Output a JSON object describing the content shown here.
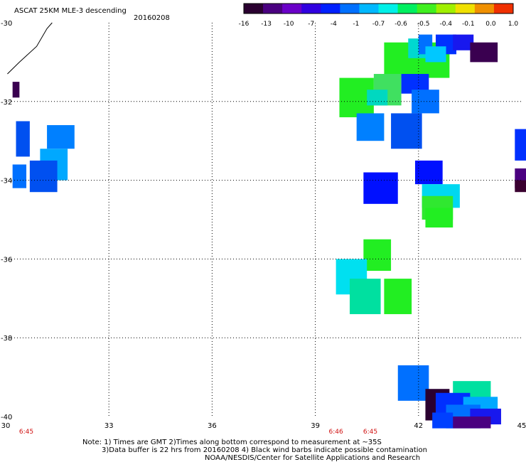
{
  "header": {
    "title": "ASCAT 25KM MLE-3 descending",
    "date": "20160208"
  },
  "colorbar": {
    "labels": [
      "-16",
      "-13",
      "-10",
      "-7",
      "-4",
      "-1",
      "-0.7",
      "-0.6",
      "-0.5",
      "-0.4",
      "-0.1",
      "0.0",
      "1.0"
    ],
    "colors": [
      "#2a0030",
      "#4a0080",
      "#6a00c8",
      "#3000e0",
      "#0020ff",
      "#0070ff",
      "#00b8ff",
      "#00f0e8",
      "#00f060",
      "#40f020",
      "#a0f000",
      "#f0e000",
      "#f09000",
      "#f03000"
    ]
  },
  "map": {
    "lon_min": 30,
    "lon_max": 45,
    "lat_min": -40,
    "lat_max": -30,
    "x_ticks": [
      "30",
      "33",
      "36",
      "39",
      "42",
      "45"
    ],
    "y_ticks": [
      "-30",
      "-32",
      "-34",
      "-36",
      "-38",
      "-40"
    ],
    "times": [
      {
        "label": "6:45",
        "lon": 30.6
      },
      {
        "label": "6:46",
        "lon": 39.6
      },
      {
        "label": "6:45",
        "lon": 40.6
      }
    ],
    "cells": [
      {
        "lon": 41.0,
        "lat": -30.5,
        "lw": 1.9,
        "lh": 0.9,
        "c": "#22ee22"
      },
      {
        "lon": 41.7,
        "lat": -30.4,
        "lw": 0.5,
        "lh": 0.5,
        "c": "#00d8d0"
      },
      {
        "lon": 42.0,
        "lat": -30.3,
        "lw": 0.4,
        "lh": 0.5,
        "c": "#0070ff"
      },
      {
        "lon": 42.5,
        "lat": -30.3,
        "lw": 0.6,
        "lh": 0.5,
        "c": "#0030ff"
      },
      {
        "lon": 43.0,
        "lat": -30.3,
        "lw": 0.6,
        "lh": 0.4,
        "c": "#1818ee"
      },
      {
        "lon": 43.5,
        "lat": -30.5,
        "lw": 0.8,
        "lh": 0.5,
        "c": "#3a0050"
      },
      {
        "lon": 42.2,
        "lat": -30.6,
        "lw": 0.6,
        "lh": 0.4,
        "c": "#00c8ff"
      },
      {
        "lon": 39.7,
        "lat": -31.4,
        "lw": 1.0,
        "lh": 1.0,
        "c": "#22ee22"
      },
      {
        "lon": 40.7,
        "lat": -31.3,
        "lw": 0.8,
        "lh": 0.8,
        "c": "#40e060"
      },
      {
        "lon": 40.5,
        "lat": -31.7,
        "lw": 0.6,
        "lh": 0.4,
        "c": "#00d8c0"
      },
      {
        "lon": 41.5,
        "lat": -31.3,
        "lw": 0.8,
        "lh": 0.5,
        "c": "#0030ff"
      },
      {
        "lon": 41.8,
        "lat": -31.7,
        "lw": 0.8,
        "lh": 0.6,
        "c": "#0070ff"
      },
      {
        "lon": 40.2,
        "lat": -32.3,
        "lw": 0.8,
        "lh": 0.7,
        "c": "#0080ff"
      },
      {
        "lon": 41.2,
        "lat": -32.3,
        "lw": 0.9,
        "lh": 0.9,
        "c": "#0050f0"
      },
      {
        "lon": 30.2,
        "lat": -31.5,
        "lw": 0.2,
        "lh": 0.4,
        "c": "#3a0050"
      },
      {
        "lon": 30.3,
        "lat": -32.5,
        "lw": 0.4,
        "lh": 0.9,
        "c": "#0050f0"
      },
      {
        "lon": 31.2,
        "lat": -32.6,
        "lw": 0.8,
        "lh": 0.6,
        "c": "#0080ff"
      },
      {
        "lon": 31.0,
        "lat": -33.2,
        "lw": 0.8,
        "lh": 0.8,
        "c": "#00a8ff"
      },
      {
        "lon": 30.7,
        "lat": -33.5,
        "lw": 0.8,
        "lh": 0.8,
        "c": "#0050f0"
      },
      {
        "lon": 30.2,
        "lat": -33.6,
        "lw": 0.4,
        "lh": 0.6,
        "c": "#0070ff"
      },
      {
        "lon": 40.4,
        "lat": -33.8,
        "lw": 1.0,
        "lh": 0.8,
        "c": "#0010ff"
      },
      {
        "lon": 41.9,
        "lat": -33.5,
        "lw": 0.8,
        "lh": 0.6,
        "c": "#0010ff"
      },
      {
        "lon": 42.1,
        "lat": -34.1,
        "lw": 1.1,
        "lh": 0.6,
        "c": "#00d8f0"
      },
      {
        "lon": 42.1,
        "lat": -34.4,
        "lw": 0.9,
        "lh": 0.6,
        "c": "#30e830"
      },
      {
        "lon": 42.2,
        "lat": -34.7,
        "lw": 0.8,
        "lh": 0.5,
        "c": "#22ee22"
      },
      {
        "lon": 44.8,
        "lat": -32.7,
        "lw": 0.4,
        "lh": 0.8,
        "c": "#0030ff"
      },
      {
        "lon": 44.8,
        "lat": -33.7,
        "lw": 0.4,
        "lh": 0.5,
        "c": "#4a0080"
      },
      {
        "lon": 44.8,
        "lat": -34.0,
        "lw": 0.4,
        "lh": 0.3,
        "c": "#3a0030"
      },
      {
        "lon": 40.4,
        "lat": -35.5,
        "lw": 0.8,
        "lh": 0.8,
        "c": "#22ee22"
      },
      {
        "lon": 39.6,
        "lat": -36.0,
        "lw": 0.9,
        "lh": 0.9,
        "c": "#00e0f0"
      },
      {
        "lon": 40.0,
        "lat": -36.5,
        "lw": 0.9,
        "lh": 0.9,
        "c": "#00e0a0"
      },
      {
        "lon": 41.0,
        "lat": -36.5,
        "lw": 0.8,
        "lh": 0.9,
        "c": "#22ee22"
      },
      {
        "lon": 41.4,
        "lat": -38.7,
        "lw": 0.9,
        "lh": 0.9,
        "c": "#0070ff"
      },
      {
        "lon": 42.2,
        "lat": -39.3,
        "lw": 0.7,
        "lh": 0.8,
        "c": "#2a0030"
      },
      {
        "lon": 43.0,
        "lat": -39.1,
        "lw": 1.1,
        "lh": 0.5,
        "c": "#00e0a0"
      },
      {
        "lon": 42.5,
        "lat": -39.4,
        "lw": 1.0,
        "lh": 0.6,
        "c": "#0030ff"
      },
      {
        "lon": 43.3,
        "lat": -39.5,
        "lw": 1.0,
        "lh": 0.6,
        "c": "#00a8ff"
      },
      {
        "lon": 42.8,
        "lat": -39.7,
        "lw": 1.0,
        "lh": 0.6,
        "c": "#0070ff"
      },
      {
        "lon": 43.5,
        "lat": -39.8,
        "lw": 0.9,
        "lh": 0.4,
        "c": "#1818ee"
      },
      {
        "lon": 42.4,
        "lat": -39.9,
        "lw": 0.6,
        "lh": 0.4,
        "c": "#0040ff"
      },
      {
        "lon": 43.0,
        "lat": -40.0,
        "lw": 1.1,
        "lh": 0.3,
        "c": "#4a0080"
      }
    ]
  },
  "notes": {
    "line1": "Note: 1) Times are GMT 2)Times along bottom correspond to measurement at ~35S",
    "line2": "3)Data buffer is 22 hrs from 20160208 4) Black wind barbs indicate possible contamination",
    "line3": "NOAA/NESDIS/Center for Satellite Applications and Research"
  }
}
